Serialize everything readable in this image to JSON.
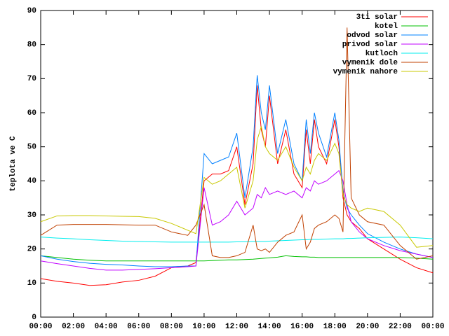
{
  "chart_data": {
    "type": "line",
    "ylabel": "teplota ve C",
    "x": [
      0,
      1,
      2,
      3,
      4,
      5,
      6,
      7,
      8,
      9,
      9.5,
      10,
      10.5,
      11,
      11.5,
      12,
      12.5,
      13,
      13.25,
      13.5,
      13.75,
      14,
      14.5,
      15,
      15.5,
      16,
      16.25,
      16.5,
      16.75,
      17,
      17.5,
      18,
      18.25,
      18.5,
      18.75,
      19,
      19.5,
      20,
      21,
      22,
      23,
      24
    ],
    "series": [
      {
        "name": "3ti solar",
        "color": "#ff0000",
        "values": [
          11.3,
          10.5,
          10,
          9.3,
          9.5,
          10.3,
          10.8,
          12,
          14.5,
          15,
          16,
          40,
          42,
          42,
          43,
          50,
          33,
          45,
          68,
          55,
          50,
          65,
          45,
          55,
          42,
          38,
          55,
          45,
          58,
          50,
          45,
          58,
          50,
          35,
          30,
          28,
          26,
          23,
          20,
          17,
          14.5,
          13
        ]
      },
      {
        "name": "kotel",
        "color": "#00c000",
        "values": [
          18,
          17.5,
          17,
          16.7,
          16.5,
          16.5,
          16.5,
          16.5,
          16.5,
          16.5,
          16.5,
          16.5,
          16.6,
          16.7,
          16.8,
          16.8,
          16.9,
          17,
          17.1,
          17.2,
          17.3,
          17.4,
          17.6,
          18,
          17.8,
          17.7,
          17.7,
          17.6,
          17.6,
          17.5,
          17.5,
          17.5,
          17.5,
          17.5,
          17.5,
          17.5,
          17.5,
          17.5,
          17.5,
          17.5,
          17.3,
          17
        ]
      },
      {
        "name": "odvod solar",
        "color": "#0080ff",
        "values": [
          18,
          17,
          16.3,
          15.8,
          15.5,
          15.3,
          15,
          14.8,
          14.8,
          15,
          15,
          48,
          45,
          46,
          47,
          54,
          35,
          50,
          71,
          60,
          55,
          68,
          48,
          58,
          45,
          40,
          58,
          48,
          60,
          54,
          47,
          60,
          52,
          37,
          32,
          30,
          27,
          24.5,
          22,
          20,
          18.5,
          17.5
        ]
      },
      {
        "name": "privod solar",
        "color": "#c000ff",
        "values": [
          16.5,
          15.7,
          15,
          14.3,
          13.8,
          13.8,
          14,
          14.2,
          14.5,
          14.8,
          15,
          38,
          27,
          28,
          30,
          34,
          30,
          32,
          36,
          35,
          38,
          36,
          37,
          36,
          37,
          35,
          38,
          37,
          40,
          39,
          40,
          42,
          43,
          40,
          33,
          28,
          25,
          23,
          21,
          19.5,
          18.5,
          17.5
        ]
      },
      {
        "name": "kutloch",
        "color": "#00eeee",
        "values": [
          23.5,
          23.2,
          23,
          22.7,
          22.5,
          22.3,
          22.2,
          22.1,
          22,
          22,
          22,
          22,
          22,
          22,
          22,
          22.1,
          22.1,
          22.2,
          22.2,
          22.2,
          22.2,
          22.3,
          22.4,
          22.5,
          22.6,
          22.7,
          22.7,
          22.8,
          22.8,
          22.8,
          22.9,
          23,
          23,
          23,
          23.1,
          23.1,
          23.2,
          23.3,
          23.4,
          23.5,
          23.3,
          23
        ]
      },
      {
        "name": "vymenik dole",
        "color": "#c04000",
        "values": [
          24,
          27,
          27.2,
          27.2,
          27.2,
          27.1,
          27,
          27,
          25,
          24,
          27,
          33,
          18,
          17.5,
          17.5,
          18,
          19,
          27,
          20,
          19.5,
          20,
          19,
          22,
          24,
          25,
          30,
          20,
          22,
          26,
          27,
          28,
          30,
          29,
          25,
          85,
          35,
          30,
          28,
          27,
          21,
          17,
          18
        ]
      },
      {
        "name": "vymenik nahore",
        "color": "#c8c800",
        "values": [
          28,
          29.7,
          29.8,
          29.8,
          29.7,
          29.6,
          29.5,
          29,
          27.5,
          25.5,
          24.5,
          41,
          39,
          40,
          42,
          44,
          32,
          40,
          52,
          56,
          50,
          48,
          46,
          50,
          44,
          40,
          44,
          42,
          46,
          48,
          46,
          51,
          48,
          36,
          33,
          32,
          31,
          32,
          31,
          27,
          20.5,
          21
        ]
      }
    ],
    "xlim": [
      0,
      24
    ],
    "xticks": [
      {
        "value": 0,
        "label": "00:00"
      },
      {
        "value": 2,
        "label": "02:00"
      },
      {
        "value": 4,
        "label": "04:00"
      },
      {
        "value": 6,
        "label": "06:00"
      },
      {
        "value": 8,
        "label": "08:00"
      },
      {
        "value": 10,
        "label": "10:00"
      },
      {
        "value": 12,
        "label": "12:00"
      },
      {
        "value": 14,
        "label": "14:00"
      },
      {
        "value": 16,
        "label": "16:00"
      },
      {
        "value": 18,
        "label": "18:00"
      },
      {
        "value": 20,
        "label": "20:00"
      },
      {
        "value": 22,
        "label": "22:00"
      },
      {
        "value": 24,
        "label": "00:00"
      }
    ],
    "ylim": [
      0,
      90
    ],
    "yticks": [
      0,
      10,
      20,
      30,
      40,
      50,
      60,
      70,
      80,
      90
    ],
    "grid": false,
    "legend": "top-right"
  }
}
